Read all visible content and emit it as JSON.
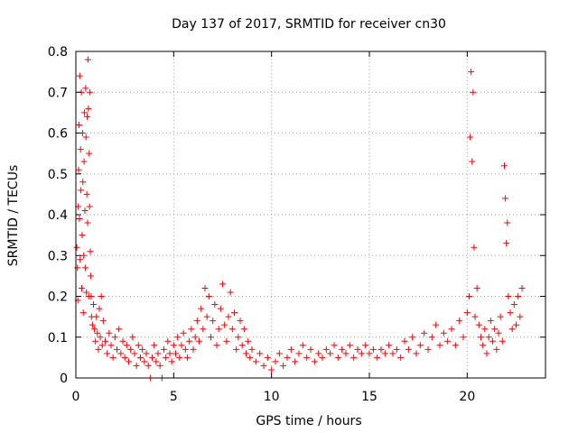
{
  "chart_data": {
    "type": "scatter",
    "title": "Day 137 of 2017, SRMTID for receiver cn30",
    "xlabel": "GPS time / hours",
    "ylabel": "SRMTID / TECUs",
    "xlim": [
      0,
      24
    ],
    "ylim": [
      0,
      0.8
    ],
    "xticks": [
      0,
      5,
      10,
      15,
      20
    ],
    "xtick_labels": [
      "0",
      "5",
      "10",
      "15",
      "20"
    ],
    "yticks": [
      0,
      0.1,
      0.2,
      0.3,
      0.4,
      0.5,
      0.6,
      0.7,
      0.8
    ],
    "ytick_labels": [
      "0",
      "0.1",
      "0.2",
      "0.3",
      "0.4",
      "0.5",
      "0.6",
      "0.7",
      "0.8"
    ],
    "grid": true,
    "marker": "+",
    "series": [
      {
        "name": "SRMTID",
        "color": "#ff0000",
        "points": [
          [
            0.05,
            0.32
          ],
          [
            0.08,
            0.27
          ],
          [
            0.1,
            0.19
          ],
          [
            0.12,
            0.42
          ],
          [
            0.14,
            0.51
          ],
          [
            0.16,
            0.62
          ],
          [
            0.18,
            0.39
          ],
          [
            0.2,
            0.74
          ],
          [
            0.22,
            0.29
          ],
          [
            0.24,
            0.56
          ],
          [
            0.26,
            0.46
          ],
          [
            0.28,
            0.7
          ],
          [
            0.3,
            0.22
          ],
          [
            0.32,
            0.35
          ],
          [
            0.34,
            0.6
          ],
          [
            0.36,
            0.48
          ],
          [
            0.38,
            0.16
          ],
          [
            0.4,
            0.3
          ],
          [
            0.42,
            0.53
          ],
          [
            0.44,
            0.65
          ],
          [
            0.46,
            0.41
          ],
          [
            0.48,
            0.27
          ],
          [
            0.5,
            0.71
          ],
          [
            0.52,
            0.59
          ],
          [
            0.54,
            0.21
          ],
          [
            0.56,
            0.45
          ],
          [
            0.58,
            0.64
          ],
          [
            0.6,
            0.38
          ],
          [
            0.62,
            0.78
          ],
          [
            0.64,
            0.66
          ],
          [
            0.66,
            0.2
          ],
          [
            0.68,
            0.55
          ],
          [
            0.7,
            0.42
          ],
          [
            0.72,
            0.7
          ],
          [
            0.74,
            0.31
          ],
          [
            0.76,
            0.25
          ],
          [
            0.78,
            0.2
          ],
          [
            0.8,
            0.15
          ],
          [
            0.85,
            0.13
          ],
          [
            0.9,
            0.18
          ],
          [
            0.95,
            0.12
          ],
          [
            1.0,
            0.09
          ],
          [
            1.05,
            0.15
          ],
          [
            1.1,
            0.11
          ],
          [
            1.15,
            0.07
          ],
          [
            1.2,
            0.17
          ],
          [
            1.25,
            0.1
          ],
          [
            1.3,
            0.2
          ],
          [
            1.35,
            0.08
          ],
          [
            1.4,
            0.14
          ],
          [
            1.5,
            0.09
          ],
          [
            1.6,
            0.06
          ],
          [
            1.7,
            0.11
          ],
          [
            1.8,
            0.08
          ],
          [
            1.9,
            0.05
          ],
          [
            2.0,
            0.1
          ],
          [
            2.1,
            0.07
          ],
          [
            2.2,
            0.12
          ],
          [
            2.3,
            0.06
          ],
          [
            2.4,
            0.09
          ],
          [
            2.5,
            0.05
          ],
          [
            2.6,
            0.08
          ],
          [
            2.7,
            0.04
          ],
          [
            2.8,
            0.07
          ],
          [
            2.9,
            0.1
          ],
          [
            3.0,
            0.06
          ],
          [
            3.1,
            0.03
          ],
          [
            3.2,
            0.08
          ],
          [
            3.3,
            0.05
          ],
          [
            3.4,
            0.07
          ],
          [
            3.5,
            0.04
          ],
          [
            3.6,
            0.06
          ],
          [
            3.7,
            0.03
          ],
          [
            3.8,
            0.0
          ],
          [
            3.9,
            0.05
          ],
          [
            4.0,
            0.08
          ],
          [
            4.1,
            0.04
          ],
          [
            4.2,
            0.06
          ],
          [
            4.3,
            0.03
          ],
          [
            4.4,
            0.0
          ],
          [
            4.5,
            0.07
          ],
          [
            4.6,
            0.05
          ],
          [
            4.7,
            0.09
          ],
          [
            4.8,
            0.06
          ],
          [
            4.9,
            0.04
          ],
          [
            5.0,
            0.08
          ],
          [
            5.1,
            0.06
          ],
          [
            5.2,
            0.1
          ],
          [
            5.3,
            0.05
          ],
          [
            5.4,
            0.08
          ],
          [
            5.5,
            0.11
          ],
          [
            5.6,
            0.07
          ],
          [
            5.7,
            0.05
          ],
          [
            5.8,
            0.09
          ],
          [
            5.9,
            0.12
          ],
          [
            6.0,
            0.07
          ],
          [
            6.1,
            0.1
          ],
          [
            6.2,
            0.14
          ],
          [
            6.3,
            0.09
          ],
          [
            6.4,
            0.17
          ],
          [
            6.5,
            0.12
          ],
          [
            6.6,
            0.22
          ],
          [
            6.7,
            0.15
          ],
          [
            6.8,
            0.2
          ],
          [
            6.9,
            0.1
          ],
          [
            7.0,
            0.14
          ],
          [
            7.1,
            0.18
          ],
          [
            7.2,
            0.08
          ],
          [
            7.3,
            0.12
          ],
          [
            7.4,
            0.17
          ],
          [
            7.5,
            0.23
          ],
          [
            7.6,
            0.13
          ],
          [
            7.7,
            0.09
          ],
          [
            7.8,
            0.15
          ],
          [
            7.9,
            0.21
          ],
          [
            8.0,
            0.12
          ],
          [
            8.1,
            0.16
          ],
          [
            8.2,
            0.07
          ],
          [
            8.3,
            0.1
          ],
          [
            8.4,
            0.14
          ],
          [
            8.5,
            0.08
          ],
          [
            8.6,
            0.12
          ],
          [
            8.7,
            0.06
          ],
          [
            8.8,
            0.09
          ],
          [
            8.9,
            0.05
          ],
          [
            9.0,
            0.07
          ],
          [
            9.2,
            0.04
          ],
          [
            9.4,
            0.06
          ],
          [
            9.6,
            0.03
          ],
          [
            9.8,
            0.05
          ],
          [
            10.0,
            0.02
          ],
          [
            10.2,
            0.04
          ],
          [
            10.4,
            0.06
          ],
          [
            10.6,
            0.03
          ],
          [
            10.8,
            0.05
          ],
          [
            11.0,
            0.07
          ],
          [
            11.2,
            0.04
          ],
          [
            11.4,
            0.06
          ],
          [
            11.6,
            0.08
          ],
          [
            11.8,
            0.05
          ],
          [
            12.0,
            0.07
          ],
          [
            12.2,
            0.04
          ],
          [
            12.4,
            0.06
          ],
          [
            12.6,
            0.05
          ],
          [
            12.8,
            0.07
          ],
          [
            13.0,
            0.06
          ],
          [
            13.2,
            0.08
          ],
          [
            13.4,
            0.05
          ],
          [
            13.6,
            0.07
          ],
          [
            13.8,
            0.06
          ],
          [
            14.0,
            0.08
          ],
          [
            14.2,
            0.05
          ],
          [
            14.4,
            0.07
          ],
          [
            14.6,
            0.06
          ],
          [
            14.8,
            0.08
          ],
          [
            15.0,
            0.06
          ],
          [
            15.2,
            0.07
          ],
          [
            15.4,
            0.05
          ],
          [
            15.6,
            0.07
          ],
          [
            15.8,
            0.06
          ],
          [
            16.0,
            0.08
          ],
          [
            16.2,
            0.06
          ],
          [
            16.4,
            0.07
          ],
          [
            16.6,
            0.05
          ],
          [
            16.8,
            0.09
          ],
          [
            17.0,
            0.07
          ],
          [
            17.2,
            0.1
          ],
          [
            17.4,
            0.06
          ],
          [
            17.6,
            0.08
          ],
          [
            17.8,
            0.11
          ],
          [
            18.0,
            0.07
          ],
          [
            18.2,
            0.1
          ],
          [
            18.4,
            0.13
          ],
          [
            18.6,
            0.08
          ],
          [
            18.8,
            0.11
          ],
          [
            19.0,
            0.09
          ],
          [
            19.2,
            0.12
          ],
          [
            19.4,
            0.08
          ],
          [
            19.6,
            0.14
          ],
          [
            19.8,
            0.1
          ],
          [
            20.0,
            0.16
          ],
          [
            20.1,
            0.2
          ],
          [
            20.15,
            0.59
          ],
          [
            20.2,
            0.75
          ],
          [
            20.25,
            0.53
          ],
          [
            20.3,
            0.7
          ],
          [
            20.35,
            0.32
          ],
          [
            20.4,
            0.15
          ],
          [
            20.5,
            0.22
          ],
          [
            20.6,
            0.13
          ],
          [
            20.7,
            0.1
          ],
          [
            20.8,
            0.08
          ],
          [
            20.9,
            0.12
          ],
          [
            21.0,
            0.06
          ],
          [
            21.1,
            0.1
          ],
          [
            21.2,
            0.14
          ],
          [
            21.3,
            0.09
          ],
          [
            21.4,
            0.12
          ],
          [
            21.5,
            0.07
          ],
          [
            21.6,
            0.11
          ],
          [
            21.7,
            0.15
          ],
          [
            21.8,
            0.09
          ],
          [
            21.9,
            0.52
          ],
          [
            21.95,
            0.44
          ],
          [
            22.0,
            0.33
          ],
          [
            22.05,
            0.38
          ],
          [
            22.1,
            0.2
          ],
          [
            22.2,
            0.16
          ],
          [
            22.3,
            0.12
          ],
          [
            22.4,
            0.18
          ],
          [
            22.5,
            0.13
          ],
          [
            22.6,
            0.2
          ],
          [
            22.7,
            0.15
          ],
          [
            22.8,
            0.22
          ]
        ]
      }
    ]
  }
}
